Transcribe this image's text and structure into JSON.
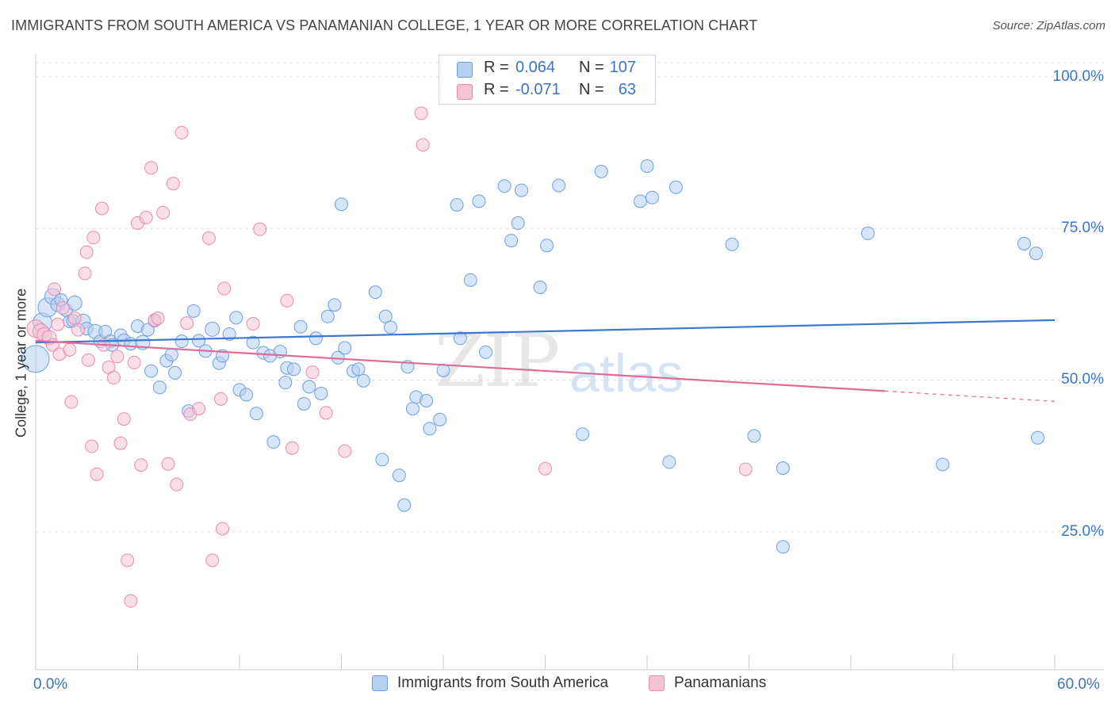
{
  "title": "IMMIGRANTS FROM SOUTH AMERICA VS PANAMANIAN COLLEGE, 1 YEAR OR MORE CORRELATION CHART",
  "source": "Source: ZipAtlas.com",
  "watermark": {
    "zip": "ZIP",
    "atlas": "atlas"
  },
  "colors": {
    "blue": "#3b78d0",
    "blue_fill": "#b6d0f2",
    "pink": "#e06a98",
    "pink_fill": "#f6c3d5",
    "grid": "#dcdcdc",
    "axis_text": "#3a75c4"
  },
  "legend_top": {
    "rows": [
      {
        "r_label": "R = ",
        "r_value": "0.064",
        "n_label": "N = ",
        "n_value": "107",
        "color": "#b6d0f2",
        "border": "#6d9fe0"
      },
      {
        "r_label": "R = ",
        "r_value": "-0.071",
        "n_label": "N = ",
        "n_value": "63",
        "color": "#f6c3d5",
        "border": "#e98bae"
      }
    ]
  },
  "chart_data": {
    "type": "scatter",
    "title": "IMMIGRANTS FROM SOUTH AMERICA VS PANAMANIAN COLLEGE, 1 YEAR OR MORE CORRELATION CHART",
    "xlabel": "",
    "ylabel": "College, 1 year or more",
    "xlim": [
      0,
      60
    ],
    "ylim": [
      0,
      105
    ],
    "x_tick_labels": [
      "0.0%",
      "60.0%"
    ],
    "y_ticks": [
      25,
      50,
      75,
      100
    ],
    "y_tick_labels": [
      "25.0%",
      "50.0%",
      "75.0%",
      "100.0%"
    ],
    "grid": true,
    "legend_position": "bottom",
    "series": [
      {
        "name": "Immigrants from South America",
        "color": "#3b78d0",
        "trend": {
          "x": [
            0,
            60
          ],
          "y": [
            56.2,
            59.9
          ]
        },
        "points": [
          [
            0.0,
            53.5,
            32
          ],
          [
            0.4,
            59.5,
            22
          ],
          [
            0.7,
            62.0,
            22
          ],
          [
            1.0,
            63.8,
            18
          ],
          [
            1.3,
            62.5,
            16
          ],
          [
            1.5,
            63.2,
            14
          ],
          [
            1.8,
            61.5,
            14
          ],
          [
            2.0,
            59.7,
            14
          ],
          [
            2.2,
            59.8,
            14
          ],
          [
            2.3,
            62.7,
            16
          ],
          [
            2.8,
            59.7,
            16
          ],
          [
            3.0,
            58.5,
            14
          ],
          [
            3.5,
            58.0,
            16
          ],
          [
            3.8,
            56.4,
            14
          ],
          [
            4.1,
            58.0,
            14
          ],
          [
            4.4,
            56.4,
            14
          ],
          [
            4.5,
            55.8,
            14
          ],
          [
            5.0,
            57.4,
            14
          ],
          [
            5.2,
            56.6,
            14
          ],
          [
            5.6,
            56.0,
            14
          ],
          [
            6.0,
            58.9,
            14
          ],
          [
            6.3,
            56.2,
            16
          ],
          [
            6.6,
            58.3,
            14
          ],
          [
            6.8,
            51.5,
            14
          ],
          [
            7.0,
            59.8,
            14
          ],
          [
            7.3,
            48.8,
            14
          ],
          [
            7.7,
            53.2,
            14
          ],
          [
            8.0,
            54.2,
            14
          ],
          [
            8.2,
            51.2,
            14
          ],
          [
            8.6,
            56.4,
            14
          ],
          [
            9.0,
            44.9,
            14
          ],
          [
            9.3,
            61.4,
            14
          ],
          [
            9.6,
            56.5,
            14
          ],
          [
            10.0,
            54.8,
            14
          ],
          [
            10.4,
            58.4,
            16
          ],
          [
            10.8,
            52.8,
            14
          ],
          [
            11.0,
            54.0,
            14
          ],
          [
            11.4,
            57.6,
            14
          ],
          [
            11.8,
            60.3,
            14
          ],
          [
            12.0,
            48.4,
            14
          ],
          [
            12.4,
            47.6,
            14
          ],
          [
            12.8,
            56.2,
            14
          ],
          [
            13.0,
            44.5,
            14
          ],
          [
            13.4,
            54.5,
            14
          ],
          [
            13.8,
            54.0,
            14
          ],
          [
            14.0,
            39.8,
            14
          ],
          [
            14.4,
            54.7,
            14
          ],
          [
            14.7,
            49.6,
            14
          ],
          [
            14.8,
            52.0,
            14
          ],
          [
            15.2,
            51.8,
            14
          ],
          [
            15.6,
            58.8,
            14
          ],
          [
            15.8,
            46.1,
            14
          ],
          [
            16.1,
            48.9,
            14
          ],
          [
            16.5,
            56.9,
            14
          ],
          [
            16.8,
            47.8,
            14
          ],
          [
            17.2,
            60.5,
            14
          ],
          [
            17.6,
            62.4,
            14
          ],
          [
            17.8,
            53.7,
            14
          ],
          [
            18.0,
            79.0,
            14
          ],
          [
            18.2,
            55.3,
            14
          ],
          [
            18.7,
            51.5,
            14
          ],
          [
            19.0,
            51.8,
            14
          ],
          [
            19.3,
            49.9,
            14
          ],
          [
            20.0,
            64.5,
            14
          ],
          [
            20.4,
            36.9,
            14
          ],
          [
            20.6,
            60.5,
            14
          ],
          [
            20.9,
            58.7,
            14
          ],
          [
            21.4,
            34.3,
            14
          ],
          [
            21.7,
            29.4,
            14
          ],
          [
            21.9,
            52.2,
            14
          ],
          [
            22.2,
            45.3,
            14
          ],
          [
            22.4,
            47.2,
            14
          ],
          [
            23.0,
            46.6,
            14
          ],
          [
            23.2,
            42.0,
            14
          ],
          [
            23.8,
            43.5,
            14
          ],
          [
            24.0,
            51.6,
            14
          ],
          [
            24.8,
            78.9,
            14
          ],
          [
            25.0,
            56.9,
            14
          ],
          [
            25.6,
            66.5,
            14
          ],
          [
            26.1,
            79.5,
            14
          ],
          [
            26.5,
            54.6,
            14
          ],
          [
            27.6,
            82.0,
            14
          ],
          [
            28.0,
            73.0,
            14
          ],
          [
            28.4,
            75.9,
            14
          ],
          [
            28.6,
            81.3,
            14
          ],
          [
            29.7,
            65.3,
            14
          ],
          [
            30.1,
            72.2,
            14
          ],
          [
            30.8,
            82.1,
            14
          ],
          [
            32.2,
            41.1,
            14
          ],
          [
            33.3,
            84.4,
            14
          ],
          [
            35.6,
            79.5,
            14
          ],
          [
            36.0,
            85.3,
            14
          ],
          [
            36.3,
            80.1,
            14
          ],
          [
            37.3,
            36.5,
            14
          ],
          [
            37.7,
            81.8,
            14
          ],
          [
            41.0,
            72.4,
            14
          ],
          [
            42.3,
            40.8,
            14
          ],
          [
            44.0,
            35.5,
            14
          ],
          [
            44.0,
            22.5,
            14
          ],
          [
            49.0,
            74.2,
            14
          ],
          [
            53.4,
            36.1,
            14
          ],
          [
            58.2,
            72.5,
            14
          ],
          [
            58.9,
            70.9,
            14
          ],
          [
            59.0,
            40.5,
            14
          ]
        ]
      },
      {
        "name": "Panamanians",
        "color": "#e06a98",
        "trend": {
          "x": [
            0,
            50
          ],
          "y": [
            56.5,
            48.2
          ]
        },
        "trend_dashed": {
          "x": [
            50,
            60
          ],
          "y": [
            48.2,
            46.5
          ]
        },
        "points": [
          [
            0.0,
            58.5,
            20
          ],
          [
            0.3,
            58.0,
            18
          ],
          [
            0.5,
            57.5,
            16
          ],
          [
            0.8,
            57.0,
            16
          ],
          [
            1.0,
            55.8,
            14
          ],
          [
            1.1,
            65.0,
            14
          ],
          [
            1.3,
            59.2,
            14
          ],
          [
            1.4,
            54.3,
            14
          ],
          [
            1.6,
            61.9,
            14
          ],
          [
            2.0,
            55.0,
            14
          ],
          [
            2.1,
            46.4,
            14
          ],
          [
            2.3,
            60.2,
            14
          ],
          [
            2.5,
            58.3,
            14
          ],
          [
            2.9,
            67.6,
            14
          ],
          [
            3.0,
            71.1,
            14
          ],
          [
            3.1,
            53.3,
            14
          ],
          [
            3.3,
            39.1,
            14
          ],
          [
            3.4,
            73.5,
            14
          ],
          [
            3.6,
            34.5,
            14
          ],
          [
            3.9,
            78.3,
            14
          ],
          [
            4.0,
            55.8,
            14
          ],
          [
            4.3,
            52.1,
            14
          ],
          [
            4.6,
            50.4,
            14
          ],
          [
            4.8,
            53.9,
            14
          ],
          [
            5.0,
            39.6,
            14
          ],
          [
            5.2,
            43.6,
            14
          ],
          [
            5.4,
            20.3,
            14
          ],
          [
            5.6,
            13.6,
            14
          ],
          [
            5.8,
            52.9,
            14
          ],
          [
            6.0,
            75.9,
            14
          ],
          [
            6.2,
            36.0,
            14
          ],
          [
            6.5,
            76.8,
            14
          ],
          [
            6.8,
            85.0,
            14
          ],
          [
            7.0,
            59.9,
            14
          ],
          [
            7.2,
            60.2,
            14
          ],
          [
            7.5,
            77.6,
            14
          ],
          [
            7.8,
            36.2,
            14
          ],
          [
            8.1,
            82.4,
            14
          ],
          [
            8.3,
            32.8,
            14
          ],
          [
            8.6,
            90.8,
            14
          ],
          [
            8.9,
            59.4,
            14
          ],
          [
            9.1,
            44.4,
            14
          ],
          [
            9.6,
            45.3,
            14
          ],
          [
            10.2,
            73.4,
            14
          ],
          [
            10.4,
            20.3,
            14
          ],
          [
            10.9,
            46.9,
            14
          ],
          [
            11.0,
            25.5,
            14
          ],
          [
            11.1,
            65.1,
            14
          ],
          [
            12.8,
            59.3,
            14
          ],
          [
            13.2,
            74.9,
            14
          ],
          [
            14.8,
            63.1,
            14
          ],
          [
            15.1,
            38.8,
            14
          ],
          [
            16.3,
            51.3,
            14
          ],
          [
            17.1,
            44.6,
            14
          ],
          [
            18.2,
            38.3,
            14
          ],
          [
            22.7,
            94.0,
            14
          ],
          [
            22.8,
            88.8,
            14
          ],
          [
            30.0,
            35.4,
            14
          ],
          [
            41.8,
            35.3,
            14
          ]
        ]
      }
    ]
  }
}
